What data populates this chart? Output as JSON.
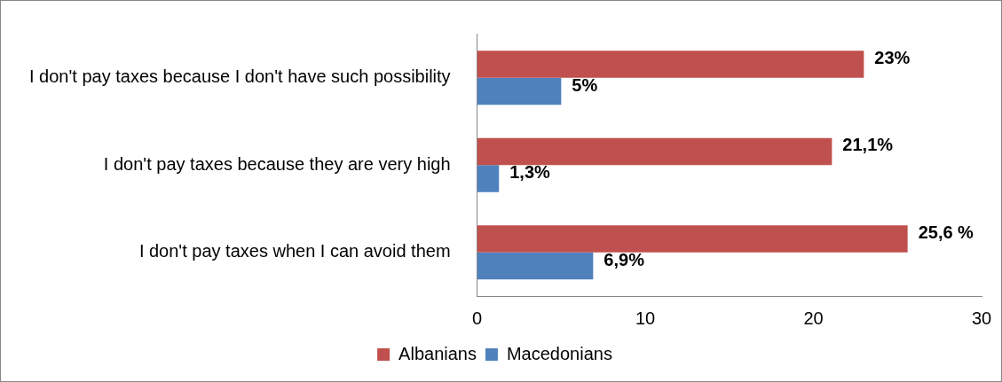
{
  "chart_data": {
    "type": "bar",
    "orientation": "horizontal",
    "categories": [
      "I don't pay taxes because I don't have such possibility",
      "I don't pay taxes because they are very high",
      "I don't pay taxes when I can avoid them"
    ],
    "series": [
      {
        "name": "Albanians",
        "color": "#c0504d",
        "values": [
          23,
          21.1,
          25.6
        ],
        "value_labels": [
          "23%",
          "21,1%",
          "25,6 %"
        ]
      },
      {
        "name": "Macedonians",
        "color": "#4f81bd",
        "values": [
          5,
          1.3,
          6.9
        ],
        "value_labels": [
          "5%",
          "1,3%",
          "6,9%"
        ]
      }
    ],
    "xlim": [
      0,
      30
    ],
    "xticks": [
      0,
      10,
      20,
      30
    ],
    "grid": false,
    "legend": "bottom"
  }
}
